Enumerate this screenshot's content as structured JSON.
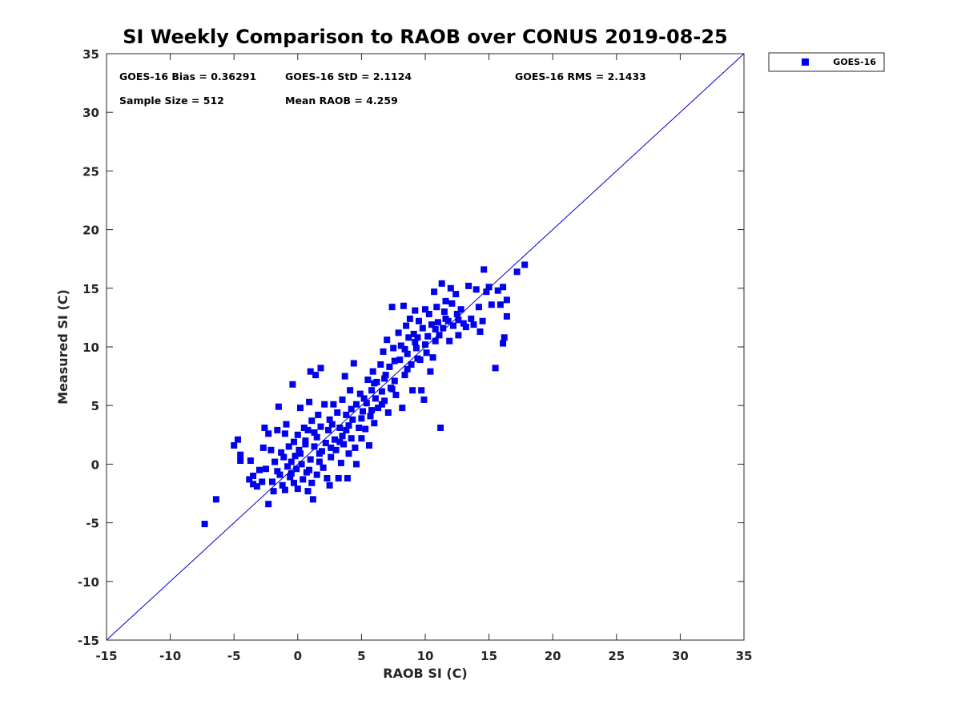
{
  "chart_data": {
    "type": "scatter",
    "title": "SI Weekly Comparison to RAOB over CONUS 2019-08-25",
    "xlabel": "RAOB SI (C)",
    "ylabel": "Measured SI (C)",
    "xlim": [
      -15,
      35
    ],
    "ylim": [
      -15,
      35
    ],
    "xticks": [
      "-15",
      "-10",
      "-5",
      "0",
      "5",
      "10",
      "15",
      "20",
      "25",
      "30",
      "35"
    ],
    "yticks": [
      "-15",
      "-10",
      "-5",
      "0",
      "5",
      "10",
      "15",
      "20",
      "25",
      "30",
      "35"
    ],
    "marker_color": "#0000ee",
    "line_color": "#0000cc",
    "reference_line": {
      "from": [
        -15,
        -15
      ],
      "to": [
        35,
        35
      ]
    },
    "legend": {
      "position": "outside-top-right",
      "entries": [
        "GOES-16"
      ]
    },
    "stats": {
      "bias": "GOES-16 Bias = 0.36291",
      "std": "GOES-16 StD = 2.1124",
      "rms": "GOES-16 RMS = 2.1433",
      "sample": "Sample Size = 512",
      "mean": "Mean RAOB = 4.259"
    },
    "series": [
      {
        "name": "GOES-16",
        "points": [
          [
            -7.3,
            -5.1
          ],
          [
            -6.4,
            -3.0
          ],
          [
            -5.0,
            1.6
          ],
          [
            -4.7,
            2.1
          ],
          [
            -4.5,
            0.3
          ],
          [
            -4.5,
            0.8
          ],
          [
            -3.8,
            -1.3
          ],
          [
            -3.7,
            0.3
          ],
          [
            -3.5,
            -1.0
          ],
          [
            -3.5,
            -1.7
          ],
          [
            -3.2,
            -1.9
          ],
          [
            -3.0,
            -0.5
          ],
          [
            -2.8,
            -1.5
          ],
          [
            -2.7,
            1.4
          ],
          [
            -2.6,
            3.1
          ],
          [
            -2.5,
            -0.4
          ],
          [
            -2.3,
            2.6
          ],
          [
            -2.3,
            -3.4
          ],
          [
            -2.1,
            1.2
          ],
          [
            -2.0,
            -1.5
          ],
          [
            -1.9,
            -2.3
          ],
          [
            -1.8,
            0.2
          ],
          [
            -1.6,
            -0.6
          ],
          [
            -1.6,
            2.9
          ],
          [
            -1.5,
            4.9
          ],
          [
            -1.4,
            -0.9
          ],
          [
            -1.3,
            1.0
          ],
          [
            -1.2,
            -1.8
          ],
          [
            -1.1,
            0.6
          ],
          [
            -1.0,
            -2.2
          ],
          [
            -1.0,
            2.6
          ],
          [
            -0.9,
            3.4
          ],
          [
            -0.8,
            -0.2
          ],
          [
            -0.7,
            1.5
          ],
          [
            -0.6,
            -1.1
          ],
          [
            -0.5,
            0.2
          ],
          [
            -0.4,
            6.8
          ],
          [
            -0.3,
            -1.6
          ],
          [
            -0.3,
            1.9
          ],
          [
            -0.2,
            0.7
          ],
          [
            -0.1,
            -0.4
          ],
          [
            0.0,
            2.5
          ],
          [
            0.0,
            -2.1
          ],
          [
            0.1,
            1.2
          ],
          [
            0.2,
            4.8
          ],
          [
            0.3,
            0.0
          ],
          [
            0.4,
            -1.3
          ],
          [
            0.5,
            3.1
          ],
          [
            0.6,
            1.7
          ],
          [
            0.7,
            -0.7
          ],
          [
            0.8,
            2.9
          ],
          [
            0.8,
            -2.3
          ],
          [
            0.9,
            5.3
          ],
          [
            1.0,
            0.4
          ],
          [
            1.0,
            7.9
          ],
          [
            1.1,
            -1.6
          ],
          [
            1.1,
            3.7
          ],
          [
            1.2,
            -3.0
          ],
          [
            1.3,
            1.5
          ],
          [
            1.4,
            7.6
          ],
          [
            1.5,
            2.3
          ],
          [
            1.5,
            -0.9
          ],
          [
            1.6,
            4.2
          ],
          [
            1.7,
            0.9
          ],
          [
            1.8,
            3.2
          ],
          [
            1.8,
            8.2
          ],
          [
            2.0,
            -0.3
          ],
          [
            2.1,
            5.1
          ],
          [
            2.2,
            1.8
          ],
          [
            2.3,
            -1.2
          ],
          [
            2.4,
            2.9
          ],
          [
            2.5,
            3.8
          ],
          [
            2.5,
            -1.8
          ],
          [
            2.6,
            0.6
          ],
          [
            2.8,
            5.1
          ],
          [
            2.9,
            2.1
          ],
          [
            3.0,
            1.2
          ],
          [
            3.1,
            4.4
          ],
          [
            3.2,
            -1.2
          ],
          [
            3.3,
            3.1
          ],
          [
            3.4,
            0.1
          ],
          [
            3.5,
            5.5
          ],
          [
            3.6,
            1.7
          ],
          [
            3.7,
            7.5
          ],
          [
            3.8,
            2.9
          ],
          [
            3.8,
            4.2
          ],
          [
            3.9,
            -1.2
          ],
          [
            4.0,
            0.9
          ],
          [
            4.1,
            6.3
          ],
          [
            4.2,
            2.2
          ],
          [
            4.3,
            3.8
          ],
          [
            4.4,
            8.6
          ],
          [
            4.5,
            1.4
          ],
          [
            4.6,
            5.1
          ],
          [
            4.6,
            0.0
          ],
          [
            4.8,
            3.1
          ],
          [
            4.9,
            6.0
          ],
          [
            5.0,
            2.2
          ],
          [
            5.1,
            4.5
          ],
          [
            5.3,
            3.0
          ],
          [
            5.4,
            5.2
          ],
          [
            5.5,
            7.2
          ],
          [
            5.6,
            1.6
          ],
          [
            5.7,
            4.1
          ],
          [
            5.8,
            6.3
          ],
          [
            5.9,
            7.9
          ],
          [
            6.0,
            3.5
          ],
          [
            6.1,
            5.6
          ],
          [
            6.2,
            7.0
          ],
          [
            6.3,
            4.8
          ],
          [
            6.5,
            8.5
          ],
          [
            6.6,
            6.2
          ],
          [
            6.7,
            9.6
          ],
          [
            6.8,
            5.4
          ],
          [
            6.9,
            7.6
          ],
          [
            7.0,
            10.6
          ],
          [
            7.1,
            4.4
          ],
          [
            7.2,
            8.3
          ],
          [
            7.3,
            6.5
          ],
          [
            7.4,
            13.4
          ],
          [
            7.5,
            9.9
          ],
          [
            7.6,
            7.1
          ],
          [
            7.7,
            5.9
          ],
          [
            7.9,
            11.2
          ],
          [
            8.0,
            8.9
          ],
          [
            8.1,
            10.1
          ],
          [
            8.2,
            4.8
          ],
          [
            8.3,
            13.5
          ],
          [
            8.4,
            7.6
          ],
          [
            8.5,
            11.8
          ],
          [
            8.6,
            9.4
          ],
          [
            8.7,
            10.8
          ],
          [
            8.8,
            12.4
          ],
          [
            8.9,
            8.5
          ],
          [
            9.0,
            6.3
          ],
          [
            9.1,
            11.1
          ],
          [
            9.2,
            13.1
          ],
          [
            9.3,
            9.9
          ],
          [
            9.4,
            10.8
          ],
          [
            9.5,
            12.2
          ],
          [
            9.6,
            8.9
          ],
          [
            9.7,
            6.3
          ],
          [
            9.8,
            11.6
          ],
          [
            9.9,
            5.5
          ],
          [
            10.0,
            13.2
          ],
          [
            10.1,
            9.5
          ],
          [
            10.2,
            10.9
          ],
          [
            10.3,
            12.8
          ],
          [
            10.4,
            7.9
          ],
          [
            10.5,
            11.9
          ],
          [
            10.6,
            9.1
          ],
          [
            10.7,
            14.7
          ],
          [
            10.8,
            10.5
          ],
          [
            10.9,
            13.4
          ],
          [
            11.0,
            12.1
          ],
          [
            11.1,
            11.0
          ],
          [
            11.2,
            3.1
          ],
          [
            11.3,
            15.4
          ],
          [
            11.4,
            11.6
          ],
          [
            11.5,
            13.0
          ],
          [
            11.6,
            13.9
          ],
          [
            11.8,
            12.2
          ],
          [
            11.9,
            10.5
          ],
          [
            12.0,
            15.0
          ],
          [
            12.1,
            13.7
          ],
          [
            12.2,
            11.8
          ],
          [
            12.4,
            14.5
          ],
          [
            12.5,
            12.8
          ],
          [
            12.6,
            11.0
          ],
          [
            12.8,
            13.2
          ],
          [
            13.0,
            12.0
          ],
          [
            13.2,
            11.7
          ],
          [
            13.4,
            15.2
          ],
          [
            13.6,
            12.4
          ],
          [
            13.8,
            11.9
          ],
          [
            14.0,
            14.9
          ],
          [
            14.2,
            13.4
          ],
          [
            14.3,
            11.3
          ],
          [
            14.5,
            12.2
          ],
          [
            14.6,
            16.6
          ],
          [
            14.8,
            14.7
          ],
          [
            15.0,
            15.1
          ],
          [
            15.2,
            13.6
          ],
          [
            15.5,
            8.2
          ],
          [
            15.7,
            14.8
          ],
          [
            15.9,
            13.6
          ],
          [
            16.1,
            15.1
          ],
          [
            16.1,
            10.3
          ],
          [
            16.2,
            10.8
          ],
          [
            16.4,
            14.0
          ],
          [
            16.4,
            12.6
          ],
          [
            17.2,
            16.4
          ],
          [
            17.8,
            17.0
          ],
          [
            0.2,
            0.9
          ],
          [
            0.6,
            2.0
          ],
          [
            1.3,
            2.7
          ],
          [
            1.9,
            1.1
          ],
          [
            2.7,
            3.4
          ],
          [
            3.5,
            2.4
          ],
          [
            4.2,
            4.7
          ],
          [
            5.2,
            5.6
          ],
          [
            6.0,
            6.9
          ],
          [
            6.8,
            7.3
          ],
          [
            7.6,
            8.8
          ],
          [
            8.4,
            9.8
          ],
          [
            9.2,
            10.4
          ],
          [
            10.0,
            10.2
          ],
          [
            10.8,
            11.5
          ],
          [
            11.6,
            12.4
          ],
          [
            12.6,
            12.3
          ],
          [
            -0.5,
            -0.8
          ],
          [
            0.9,
            -0.5
          ],
          [
            1.7,
            0.2
          ],
          [
            2.6,
            1.4
          ],
          [
            3.3,
            1.9
          ],
          [
            4.0,
            3.3
          ],
          [
            5.0,
            3.9
          ],
          [
            5.8,
            4.6
          ],
          [
            6.6,
            5.1
          ],
          [
            7.4,
            6.4
          ],
          [
            8.6,
            8.1
          ],
          [
            9.4,
            9.0
          ]
        ]
      }
    ]
  }
}
